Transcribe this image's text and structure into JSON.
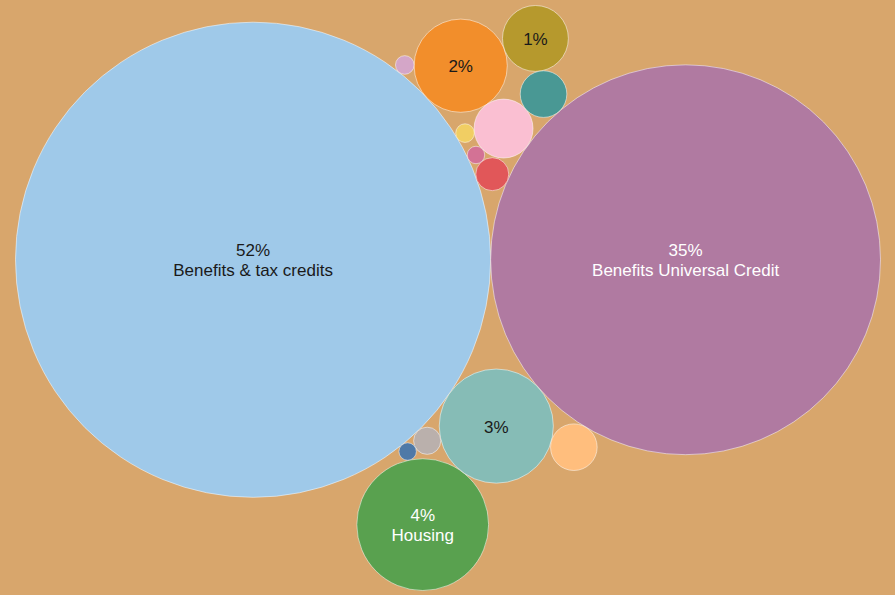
{
  "chart_data": {
    "type": "bubble",
    "categories": [
      "Benefits & tax credits",
      "Benefits Universal Credit",
      null,
      null,
      null,
      null,
      null,
      null,
      null,
      null,
      null,
      null,
      null,
      null,
      "Housing"
    ],
    "values": [
      52,
      35,
      3,
      0.25,
      0.07,
      0.8,
      0.08,
      2,
      0.17,
      0.5,
      0.5,
      1,
      0.08,
      0.07,
      4
    ],
    "value_labels": [
      "52%",
      "35%",
      "3%",
      null,
      null,
      null,
      null,
      "2%",
      null,
      null,
      null,
      "1%",
      null,
      null,
      "4%"
    ],
    "colors": [
      "#9fc9e9",
      "#b07aa1",
      "#86bcb6",
      "#e15759",
      "#d37295",
      "#fabfd2",
      "#f1ce63",
      "#f28e2b",
      "#bab0ac",
      "#499894",
      "#ffbe7d",
      "#b6992d",
      "#d4a6c8",
      "#4e79a7",
      "#59a14f"
    ],
    "data_labels": true,
    "tick_labels": false
  }
}
